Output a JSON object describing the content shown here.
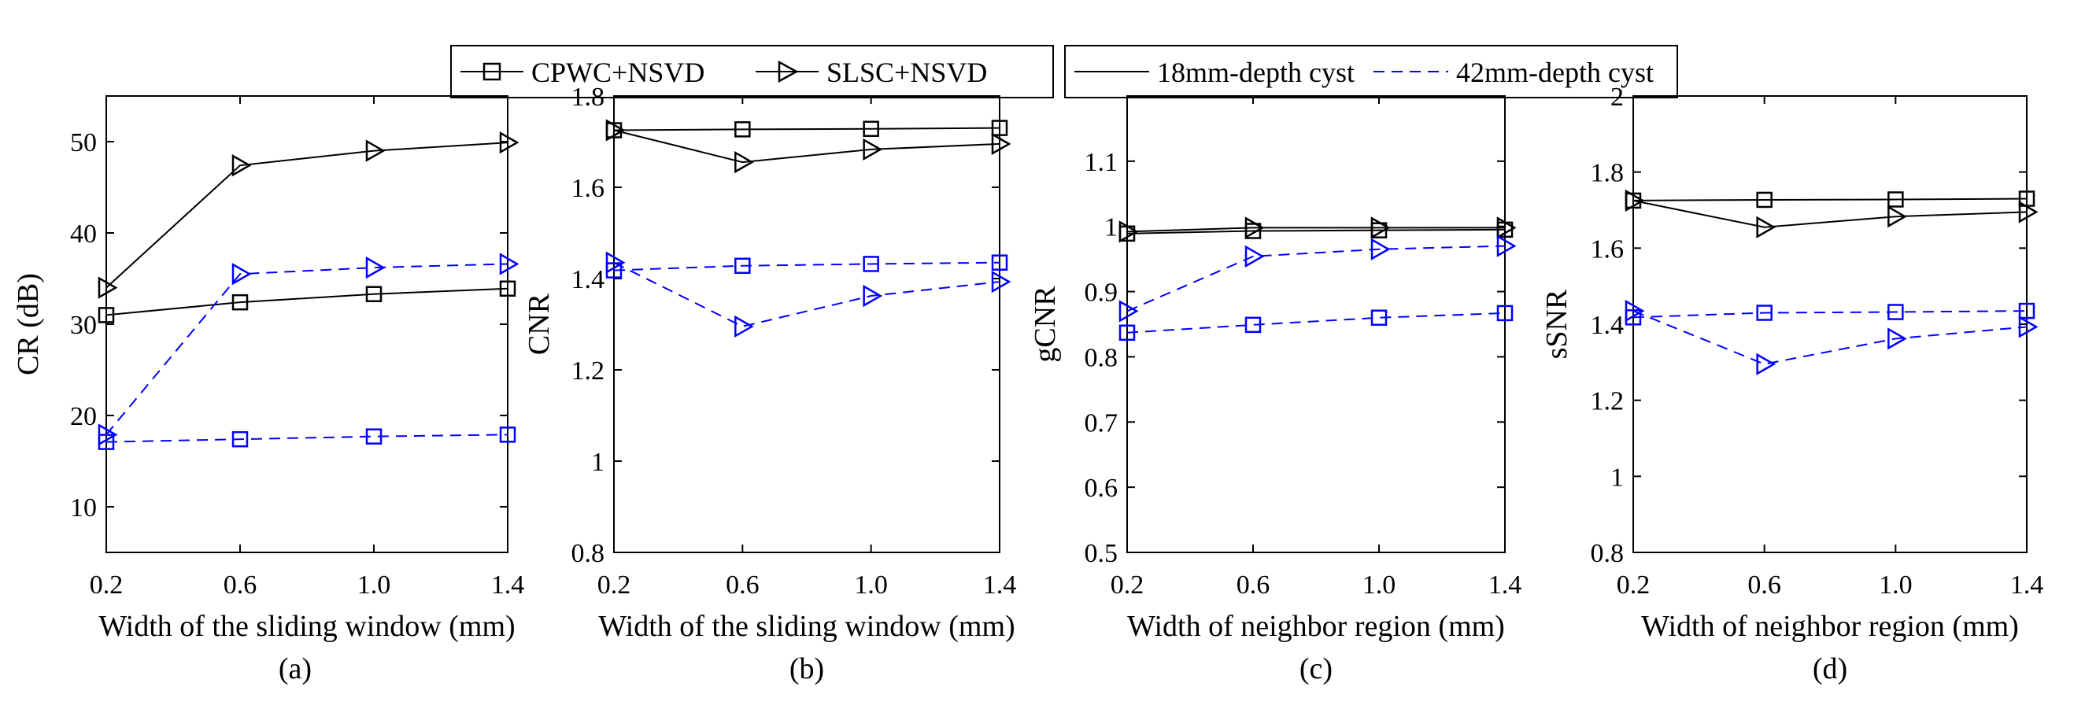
{
  "legend": {
    "markers": [
      {
        "label": "CPWC+NSVD",
        "marker": "square"
      },
      {
        "label": "SLSC+NSVD",
        "marker": "triangle-right"
      }
    ],
    "lines": [
      {
        "label": "18mm-depth cyst",
        "style": "solid",
        "color": "#000000"
      },
      {
        "label": "42mm-depth cyst",
        "style": "dashed",
        "color": "#0000ff"
      }
    ]
  },
  "colors": {
    "depth18": "#000000",
    "depth42": "#0000ff"
  },
  "chart_data": [
    {
      "type": "line",
      "panel_label": "(a)",
      "xlabel": "Width of the sliding window (mm)",
      "ylabel": "CR (dB)",
      "x": [
        0.2,
        0.6,
        1.0,
        1.4
      ],
      "xticks": [
        "0.2",
        "0.6",
        "1.0",
        "1.4"
      ],
      "xlim": [
        0.2,
        1.4
      ],
      "ylim": [
        5,
        55
      ],
      "yticks": [
        10,
        20,
        30,
        40,
        50
      ],
      "yticklabels": [
        "10",
        "20",
        "30",
        "40",
        "50"
      ],
      "series": [
        {
          "name": "CPWC+NSVD 18mm-depth cyst",
          "method": "CPWC+NSVD",
          "depth": "18mm-depth cyst",
          "values": [
            31.0,
            32.4,
            33.3,
            33.9
          ]
        },
        {
          "name": "SLSC+NSVD 18mm-depth cyst",
          "method": "SLSC+NSVD",
          "depth": "18mm-depth cyst",
          "values": [
            34.0,
            47.4,
            49.0,
            49.9
          ]
        },
        {
          "name": "CPWC+NSVD 42mm-depth cyst",
          "method": "CPWC+NSVD",
          "depth": "42mm-depth cyst",
          "values": [
            17.1,
            17.4,
            17.7,
            17.9
          ]
        },
        {
          "name": "SLSC+NSVD 42mm-depth cyst",
          "method": "SLSC+NSVD",
          "depth": "42mm-depth cyst",
          "values": [
            17.9,
            35.5,
            36.2,
            36.6
          ]
        }
      ]
    },
    {
      "type": "line",
      "panel_label": "(b)",
      "xlabel": "Width of the sliding window (mm)",
      "ylabel": "CNR",
      "x": [
        0.2,
        0.6,
        1.0,
        1.4
      ],
      "xticks": [
        "0.2",
        "0.6",
        "1.0",
        "1.4"
      ],
      "xlim": [
        0.2,
        1.4
      ],
      "ylim": [
        0.8,
        1.8
      ],
      "yticks": [
        0.8,
        1.0,
        1.2,
        1.4,
        1.6,
        1.8
      ],
      "yticklabels": [
        "0.8",
        "1",
        "1.2",
        "1.4",
        "1.6",
        "1.8"
      ],
      "series": [
        {
          "name": "CPWC+NSVD 18mm-depth cyst",
          "method": "CPWC+NSVD",
          "depth": "18mm-depth cyst",
          "values": [
            1.725,
            1.727,
            1.728,
            1.73
          ]
        },
        {
          "name": "SLSC+NSVD 18mm-depth cyst",
          "method": "SLSC+NSVD",
          "depth": "18mm-depth cyst",
          "values": [
            1.725,
            1.655,
            1.683,
            1.695
          ]
        },
        {
          "name": "CPWC+NSVD 42mm-depth cyst",
          "method": "CPWC+NSVD",
          "depth": "42mm-depth cyst",
          "values": [
            1.418,
            1.428,
            1.432,
            1.435
          ]
        },
        {
          "name": "SLSC+NSVD 42mm-depth cyst",
          "method": "SLSC+NSVD",
          "depth": "42mm-depth cyst",
          "values": [
            1.435,
            1.295,
            1.362,
            1.393
          ]
        }
      ]
    },
    {
      "type": "line",
      "panel_label": "(c)",
      "xlabel": "Width of neighbor region (mm)",
      "ylabel": "gCNR",
      "x": [
        0.2,
        0.6,
        1.0,
        1.4
      ],
      "xticks": [
        "0.2",
        "0.6",
        "1.0",
        "1.4"
      ],
      "xlim": [
        0.2,
        1.4
      ],
      "ylim": [
        0.5,
        1.2
      ],
      "yticks": [
        0.5,
        0.6,
        0.7,
        0.8,
        0.9,
        1.0,
        1.1
      ],
      "yticklabels": [
        "0.5",
        "0.6",
        "0.7",
        "0.8",
        "0.9",
        "1",
        "1.1"
      ],
      "series": [
        {
          "name": "CPWC+NSVD 18mm-depth cyst",
          "method": "CPWC+NSVD",
          "depth": "18mm-depth cyst",
          "values": [
            0.989,
            0.993,
            0.994,
            0.995
          ]
        },
        {
          "name": "SLSC+NSVD 18mm-depth cyst",
          "method": "SLSC+NSVD",
          "depth": "18mm-depth cyst",
          "values": [
            0.992,
            0.998,
            0.998,
            0.998
          ]
        },
        {
          "name": "CPWC+NSVD 42mm-depth cyst",
          "method": "CPWC+NSVD",
          "depth": "42mm-depth cyst",
          "values": [
            0.837,
            0.849,
            0.86,
            0.867
          ]
        },
        {
          "name": "SLSC+NSVD 42mm-depth cyst",
          "method": "SLSC+NSVD",
          "depth": "42mm-depth cyst",
          "values": [
            0.87,
            0.954,
            0.965,
            0.97
          ]
        }
      ]
    },
    {
      "type": "line",
      "panel_label": "(d)",
      "xlabel": "Width of neighbor region (mm)",
      "ylabel": "sSNR",
      "x": [
        0.2,
        0.6,
        1.0,
        1.4
      ],
      "xticks": [
        "0.2",
        "0.6",
        "1.0",
        "1.4"
      ],
      "xlim": [
        0.2,
        1.4
      ],
      "ylim": [
        0.8,
        2.0
      ],
      "yticks": [
        0.8,
        1.0,
        1.2,
        1.4,
        1.6,
        1.8,
        2.0
      ],
      "yticklabels": [
        "0.8",
        "1",
        "1.2",
        "1.4",
        "1.6",
        "1.8",
        "2"
      ],
      "series": [
        {
          "name": "CPWC+NSVD 18mm-depth cyst",
          "method": "CPWC+NSVD",
          "depth": "18mm-depth cyst",
          "values": [
            1.725,
            1.727,
            1.728,
            1.73
          ]
        },
        {
          "name": "SLSC+NSVD 18mm-depth cyst",
          "method": "SLSC+NSVD",
          "depth": "18mm-depth cyst",
          "values": [
            1.725,
            1.655,
            1.683,
            1.695
          ]
        },
        {
          "name": "CPWC+NSVD 42mm-depth cyst",
          "method": "CPWC+NSVD",
          "depth": "42mm-depth cyst",
          "values": [
            1.418,
            1.43,
            1.432,
            1.435
          ]
        },
        {
          "name": "SLSC+NSVD 42mm-depth cyst",
          "method": "SLSC+NSVD",
          "depth": "42mm-depth cyst",
          "values": [
            1.435,
            1.295,
            1.362,
            1.393
          ]
        }
      ]
    }
  ]
}
